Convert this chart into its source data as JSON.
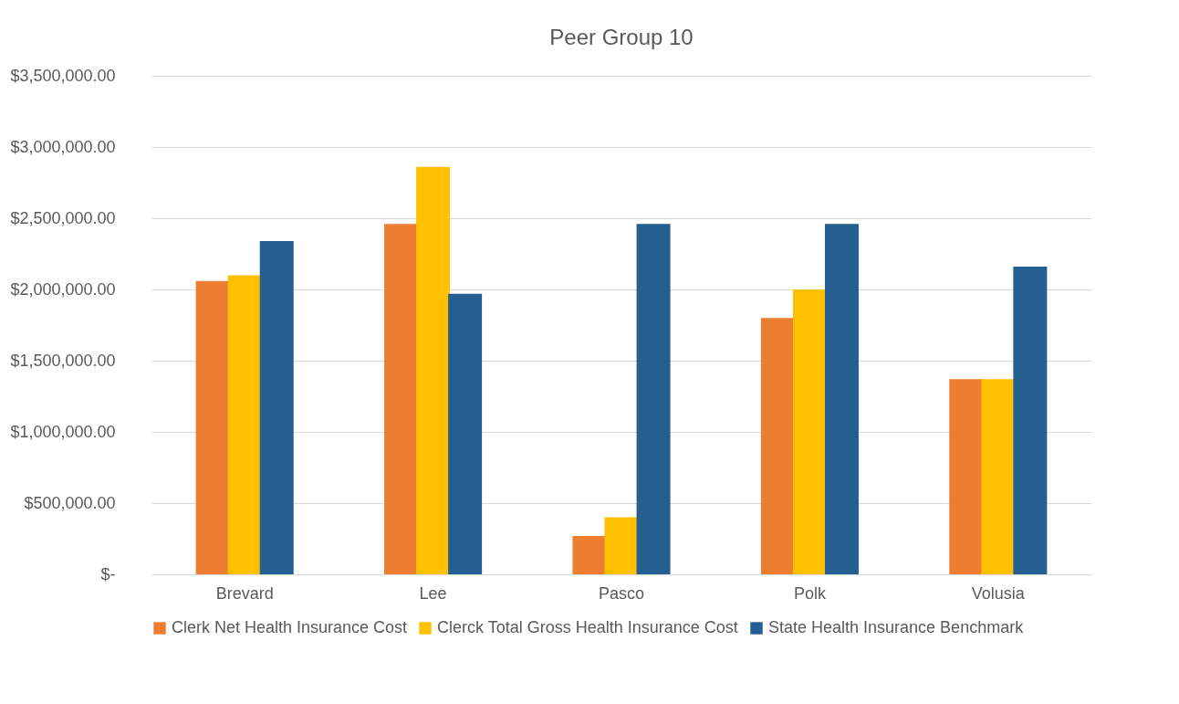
{
  "chart_data": {
    "type": "bar",
    "title": "Peer Group 10",
    "categories": [
      "Brevard",
      "Lee",
      "Pasco",
      "Polk",
      "Volusia"
    ],
    "series": [
      {
        "name": "Clerk Net Health Insurance Cost",
        "color": "#ed7d31",
        "values": [
          2060000,
          2460000,
          270000,
          1800000,
          1370000
        ]
      },
      {
        "name": "Clerck Total Gross Health Insurance Cost",
        "color": "#ffc000",
        "values": [
          2100000,
          2860000,
          400000,
          2000000,
          1370000
        ]
      },
      {
        "name": "State Health Insurance Benchmark",
        "color": "#255e91",
        "values": [
          2340000,
          1970000,
          2460000,
          2460000,
          2160000
        ]
      }
    ],
    "ylim": [
      0,
      3500000
    ],
    "yticks": [
      {
        "value": 0,
        "label": "$-"
      },
      {
        "value": 500000,
        "label": "$500,000.00"
      },
      {
        "value": 1000000,
        "label": "$1,000,000.00"
      },
      {
        "value": 1500000,
        "label": "$1,500,000.00"
      },
      {
        "value": 2000000,
        "label": "$2,000,000.00"
      },
      {
        "value": 2500000,
        "label": "$2,500,000.00"
      },
      {
        "value": 3000000,
        "label": "$3,000,000.00"
      },
      {
        "value": 3500000,
        "label": "$3,500,000.00"
      }
    ],
    "grid": "y",
    "legend": "bottom"
  }
}
